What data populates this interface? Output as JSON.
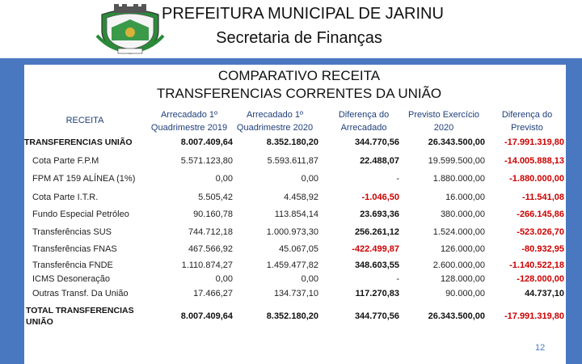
{
  "header": {
    "title_line1": "PREFEITURA MUNICIPAL DE JARINU",
    "title_line2": "Secretaria de Finanças"
  },
  "heading": {
    "line1": "COMPARATIVO RECEITA",
    "line2": "TRANSFERENCIAS CORRENTES DA UNIÃO"
  },
  "columns": {
    "receita": "RECEITA",
    "c1_line1": "Arrecadado 1º",
    "c1_line2": "Quadrimestre 2019",
    "c2_line1": "Arrecadado 1º",
    "c2_line2": "Quadrimestre 2020",
    "c3_line1": "Diferença do",
    "c3_line2": "Arrecadado",
    "c4_line1": "Previsto Exercício",
    "c4_line2": "2020",
    "c5_line1": "Diferença do",
    "c5_line2": "Previsto"
  },
  "rows": [
    {
      "name": "TRANSFERENCIAS UNIÃO",
      "c1": "8.007.409,64",
      "c2": "8.352.180,20",
      "c3": "344.770,56",
      "c4": "26.343.500,00",
      "c5": "-17.991.319,80"
    },
    {
      "name": "Cota Parte F.P.M",
      "c1": "5.571.123,80",
      "c2": "5.593.611,87",
      "c3": "22.488,07",
      "c4": "19.599.500,00",
      "c5": "-14.005.888,13"
    },
    {
      "name": "FPM AT 159 ALÍNEA (1%)",
      "c1": "0,00",
      "c2": "0,00",
      "c3": "-",
      "c4": "1.880.000,00",
      "c5": "-1.880.000,00"
    },
    {
      "name": "Cota Parte I.T.R.",
      "c1": "5.505,42",
      "c2": "4.458,92",
      "c3": "-1.046,50",
      "c4": "16.000,00",
      "c5": "-11.541,08"
    },
    {
      "name": "Fundo Especial Petróleo",
      "c1": "90.160,78",
      "c2": "113.854,14",
      "c3": "23.693,36",
      "c4": "380.000,00",
      "c5": "-266.145,86"
    },
    {
      "name": "Transferências SUS",
      "c1": "744.712,18",
      "c2": "1.000.973,30",
      "c3": "256.261,12",
      "c4": "1.524.000,00",
      "c5": "-523.026,70"
    },
    {
      "name": "Transferências FNAS",
      "c1": "467.566,92",
      "c2": "45.067,05",
      "c3": "-422.499,87",
      "c4": "126.000,00",
      "c5": "-80.932,95"
    },
    {
      "name": "Transferência FNDE",
      "c1": "1.110.874,27",
      "c2": "1.459.477,82",
      "c3": "348.603,55",
      "c4": "2.600.000,00",
      "c5": "-1.140.522,18"
    },
    {
      "name": "ICMS Desoneração",
      "c1": "0,00",
      "c2": "0,00",
      "c3": "-",
      "c4": "128.000,00",
      "c5": "-128.000,00"
    },
    {
      "name": "Outras Transf. Da União",
      "c1": "17.466,27",
      "c2": "134.737,10",
      "c3": "117.270,83",
      "c4": "90.000,00",
      "c5": "44.737,10"
    }
  ],
  "total": {
    "name_line1": "TOTAL TRANSFERENCIAS",
    "name_line2": "UNIÃO",
    "c1": "8.007.409,64",
    "c2": "8.352.180,20",
    "c3": "344.770,56",
    "c4": "26.343.500,00",
    "c5": "-17.991.319,80"
  },
  "page_number": "12",
  "colors": {
    "accent_band": "#4a78c0",
    "negative": "#cc0000",
    "header_text": "#1f3f7a"
  },
  "icons": {
    "crest": "municipal-crest-icon"
  }
}
